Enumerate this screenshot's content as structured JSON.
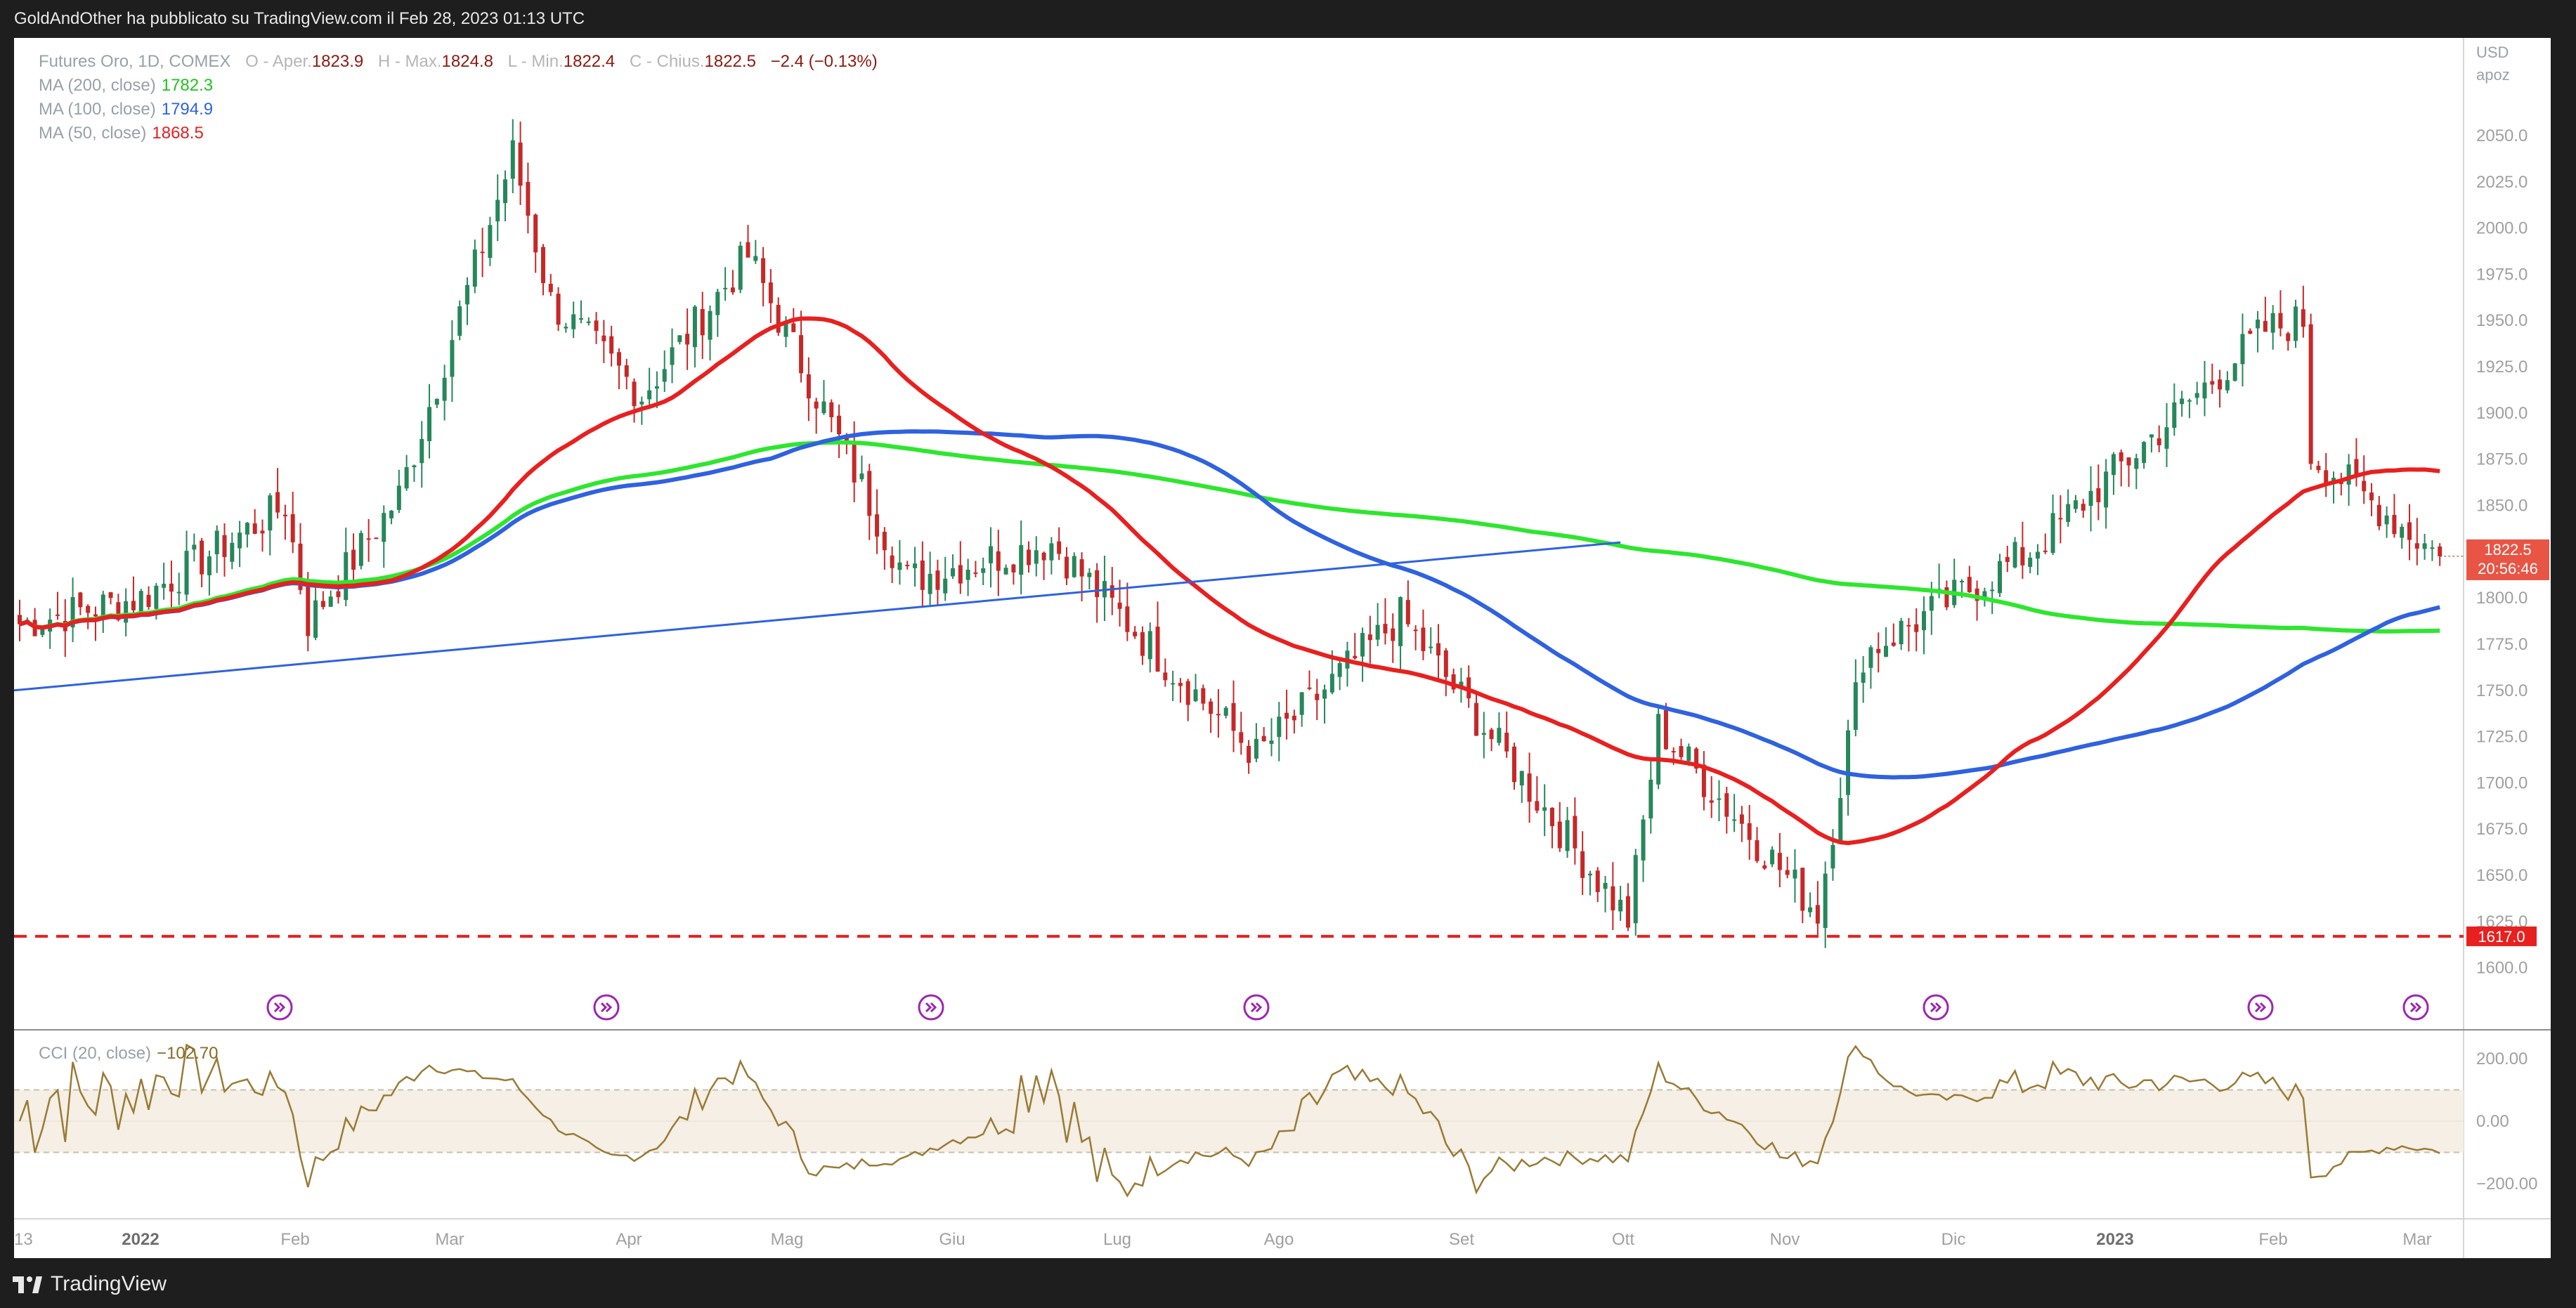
{
  "header": {
    "publisher_line": "GoldAndOther ha pubblicato su TradingView.com il Feb 28, 2023 01:13 UTC"
  },
  "legend": {
    "symbol": "Futures Oro, 1D, COMEX",
    "o_label": "O - Aper.",
    "o_value": "1823.9",
    "h_label": "H - Max.",
    "h_value": "1824.8",
    "l_label": "L - Min.",
    "l_value": "1822.4",
    "c_label": "C - Chius.",
    "c_value": "1822.5",
    "change": "−2.4 (−0.13%)",
    "ma200_label": "MA (200, close)",
    "ma200_value": "1782.3",
    "ma100_label": "MA (100, close)",
    "ma100_value": "1794.9",
    "ma50_label": "MA (50, close)",
    "ma50_value": "1868.5",
    "cci_label": "CCI (20, close)",
    "cci_value": "−102.70"
  },
  "axis": {
    "currency": "USD",
    "scale_mode": "apoz",
    "price_ticks": [
      "2050.0",
      "2025.0",
      "2000.0",
      "1975.0",
      "1950.0",
      "1925.0",
      "1900.0",
      "1875.0",
      "1850.0",
      "1825.0",
      "1800.0",
      "1775.0",
      "1750.0",
      "1725.0",
      "1700.0",
      "1675.0",
      "1650.0",
      "1625.0",
      "1600.0"
    ],
    "cci_ticks": [
      "200.00",
      "0.00",
      "−200.00"
    ],
    "time_labels": [
      "13",
      "2022",
      "Feb",
      "Mar",
      "Apr",
      "Mag",
      "Giu",
      "Lug",
      "Ago",
      "Set",
      "Ott",
      "Nov",
      "Dic",
      "2023",
      "Feb",
      "Mar"
    ],
    "last_price_label": "1822.5",
    "countdown_label": "20:56:46",
    "support_label": "1617.0"
  },
  "footer": {
    "brand": "TradingView"
  },
  "colors": {
    "up": "#26875b",
    "down": "#c62828",
    "ma50": "#e8201f",
    "ma100": "#2f62e0",
    "ma200": "#2ee62e",
    "trendline": "#2f62e0",
    "support": "#e8201f",
    "cci_line": "#9a7a35",
    "cci_band": "#f5efe5"
  },
  "chart_data": {
    "type": "candlestick",
    "title": "Futures Oro, 1D, COMEX",
    "ylim": [
      1590,
      2080
    ],
    "support_level": 1617.0,
    "last_price": 1822.5,
    "cci_ylim": [
      -300,
      300
    ],
    "cci_band": [
      -100,
      100
    ],
    "cci_last": -102.7,
    "closes_approx": [
      {
        "date": "2021-12-13",
        "close": 1786
      },
      {
        "date": "2022-01-03",
        "close": 1800
      },
      {
        "date": "2022-01-25",
        "close": 1850
      },
      {
        "date": "2022-01-28",
        "close": 1787
      },
      {
        "date": "2022-02-15",
        "close": 1855
      },
      {
        "date": "2022-03-08",
        "close": 2040
      },
      {
        "date": "2022-03-14",
        "close": 1960
      },
      {
        "date": "2022-03-29",
        "close": 1910
      },
      {
        "date": "2022-04-18",
        "close": 1985
      },
      {
        "date": "2022-05-16",
        "close": 1810
      },
      {
        "date": "2022-06-13",
        "close": 1830
      },
      {
        "date": "2022-07-05",
        "close": 1765
      },
      {
        "date": "2022-07-21",
        "close": 1715
      },
      {
        "date": "2022-08-16",
        "close": 1790
      },
      {
        "date": "2022-09-28",
        "close": 1626
      },
      {
        "date": "2022-10-04",
        "close": 1730
      },
      {
        "date": "2022-11-03",
        "close": 1630
      },
      {
        "date": "2022-11-11",
        "close": 1770
      },
      {
        "date": "2022-12-13",
        "close": 1825
      },
      {
        "date": "2023-01-26",
        "close": 1945
      },
      {
        "date": "2023-02-02",
        "close": 1950
      },
      {
        "date": "2023-02-03",
        "close": 1878
      },
      {
        "date": "2023-02-28",
        "close": 1822.5
      }
    ]
  }
}
